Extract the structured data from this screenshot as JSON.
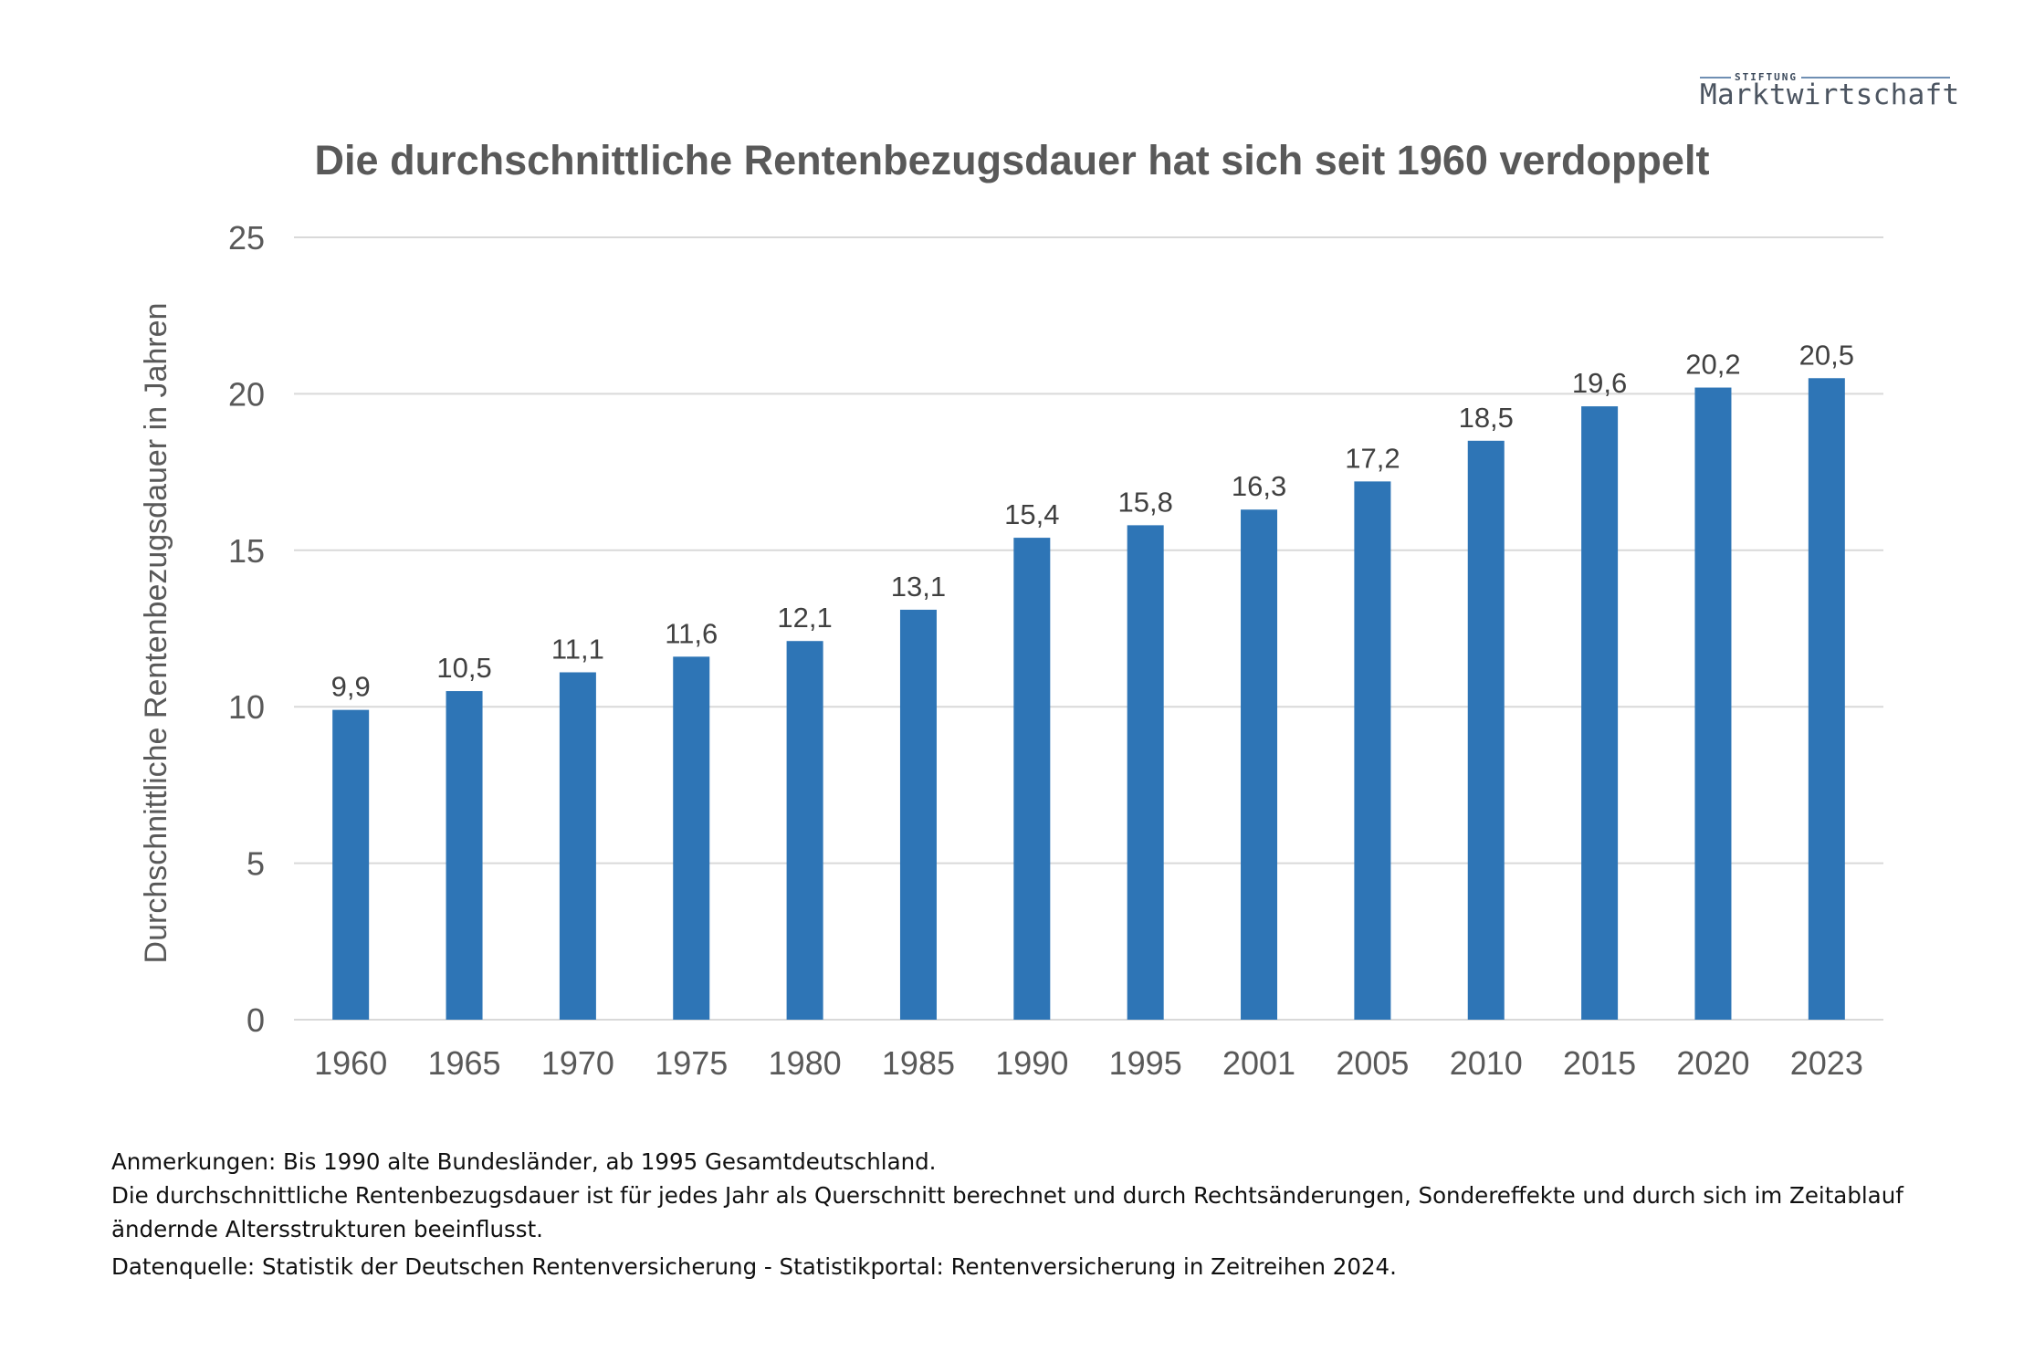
{
  "logo": {
    "small": "STIFTUNG",
    "main": "Marktwirtschaft"
  },
  "chart_data": {
    "type": "bar",
    "title": "Die durchschnittliche Rentenbezugsdauer hat sich seit 1960 verdoppelt",
    "xlabel": "",
    "ylabel": "Durchschnittliche Rentenbezugsdauer in Jahren",
    "categories": [
      "1960",
      "1965",
      "1970",
      "1975",
      "1980",
      "1985",
      "1990",
      "1995",
      "2001",
      "2005",
      "2010",
      "2015",
      "2020",
      "2023"
    ],
    "values": [
      9.9,
      10.5,
      11.1,
      11.6,
      12.1,
      13.1,
      15.4,
      15.8,
      16.3,
      17.2,
      18.5,
      19.6,
      20.2,
      20.5
    ],
    "value_labels": [
      "9,9",
      "10,5",
      "11,1",
      "11,6",
      "12,1",
      "13,1",
      "15,4",
      "15,8",
      "16,3",
      "17,2",
      "18,5",
      "19,6",
      "20,2",
      "20,5"
    ],
    "ylim": [
      0,
      25
    ],
    "yticks": [
      0,
      5,
      10,
      15,
      20,
      25
    ],
    "grid": true,
    "legend": "none",
    "bar_color": "#2e75b6",
    "grid_color": "#d9d9d9",
    "text_color": "#595959"
  },
  "notes": {
    "line1": "Anmerkungen: Bis 1990 alte Bundesländer, ab 1995 Gesamtdeutschland.",
    "line2": "Die durchschnittliche Rentenbezugsdauer ist für jedes Jahr als Querschnitt berechnet und durch Rechtsänderungen, Sondereffekte und durch sich im Zeitablauf",
    "line3": "ändernde Altersstrukturen beeinflusst.",
    "source": "Datenquelle: Statistik der Deutschen Rentenversicherung - Statistikportal: Rentenversicherung in Zeitreihen 2024."
  }
}
